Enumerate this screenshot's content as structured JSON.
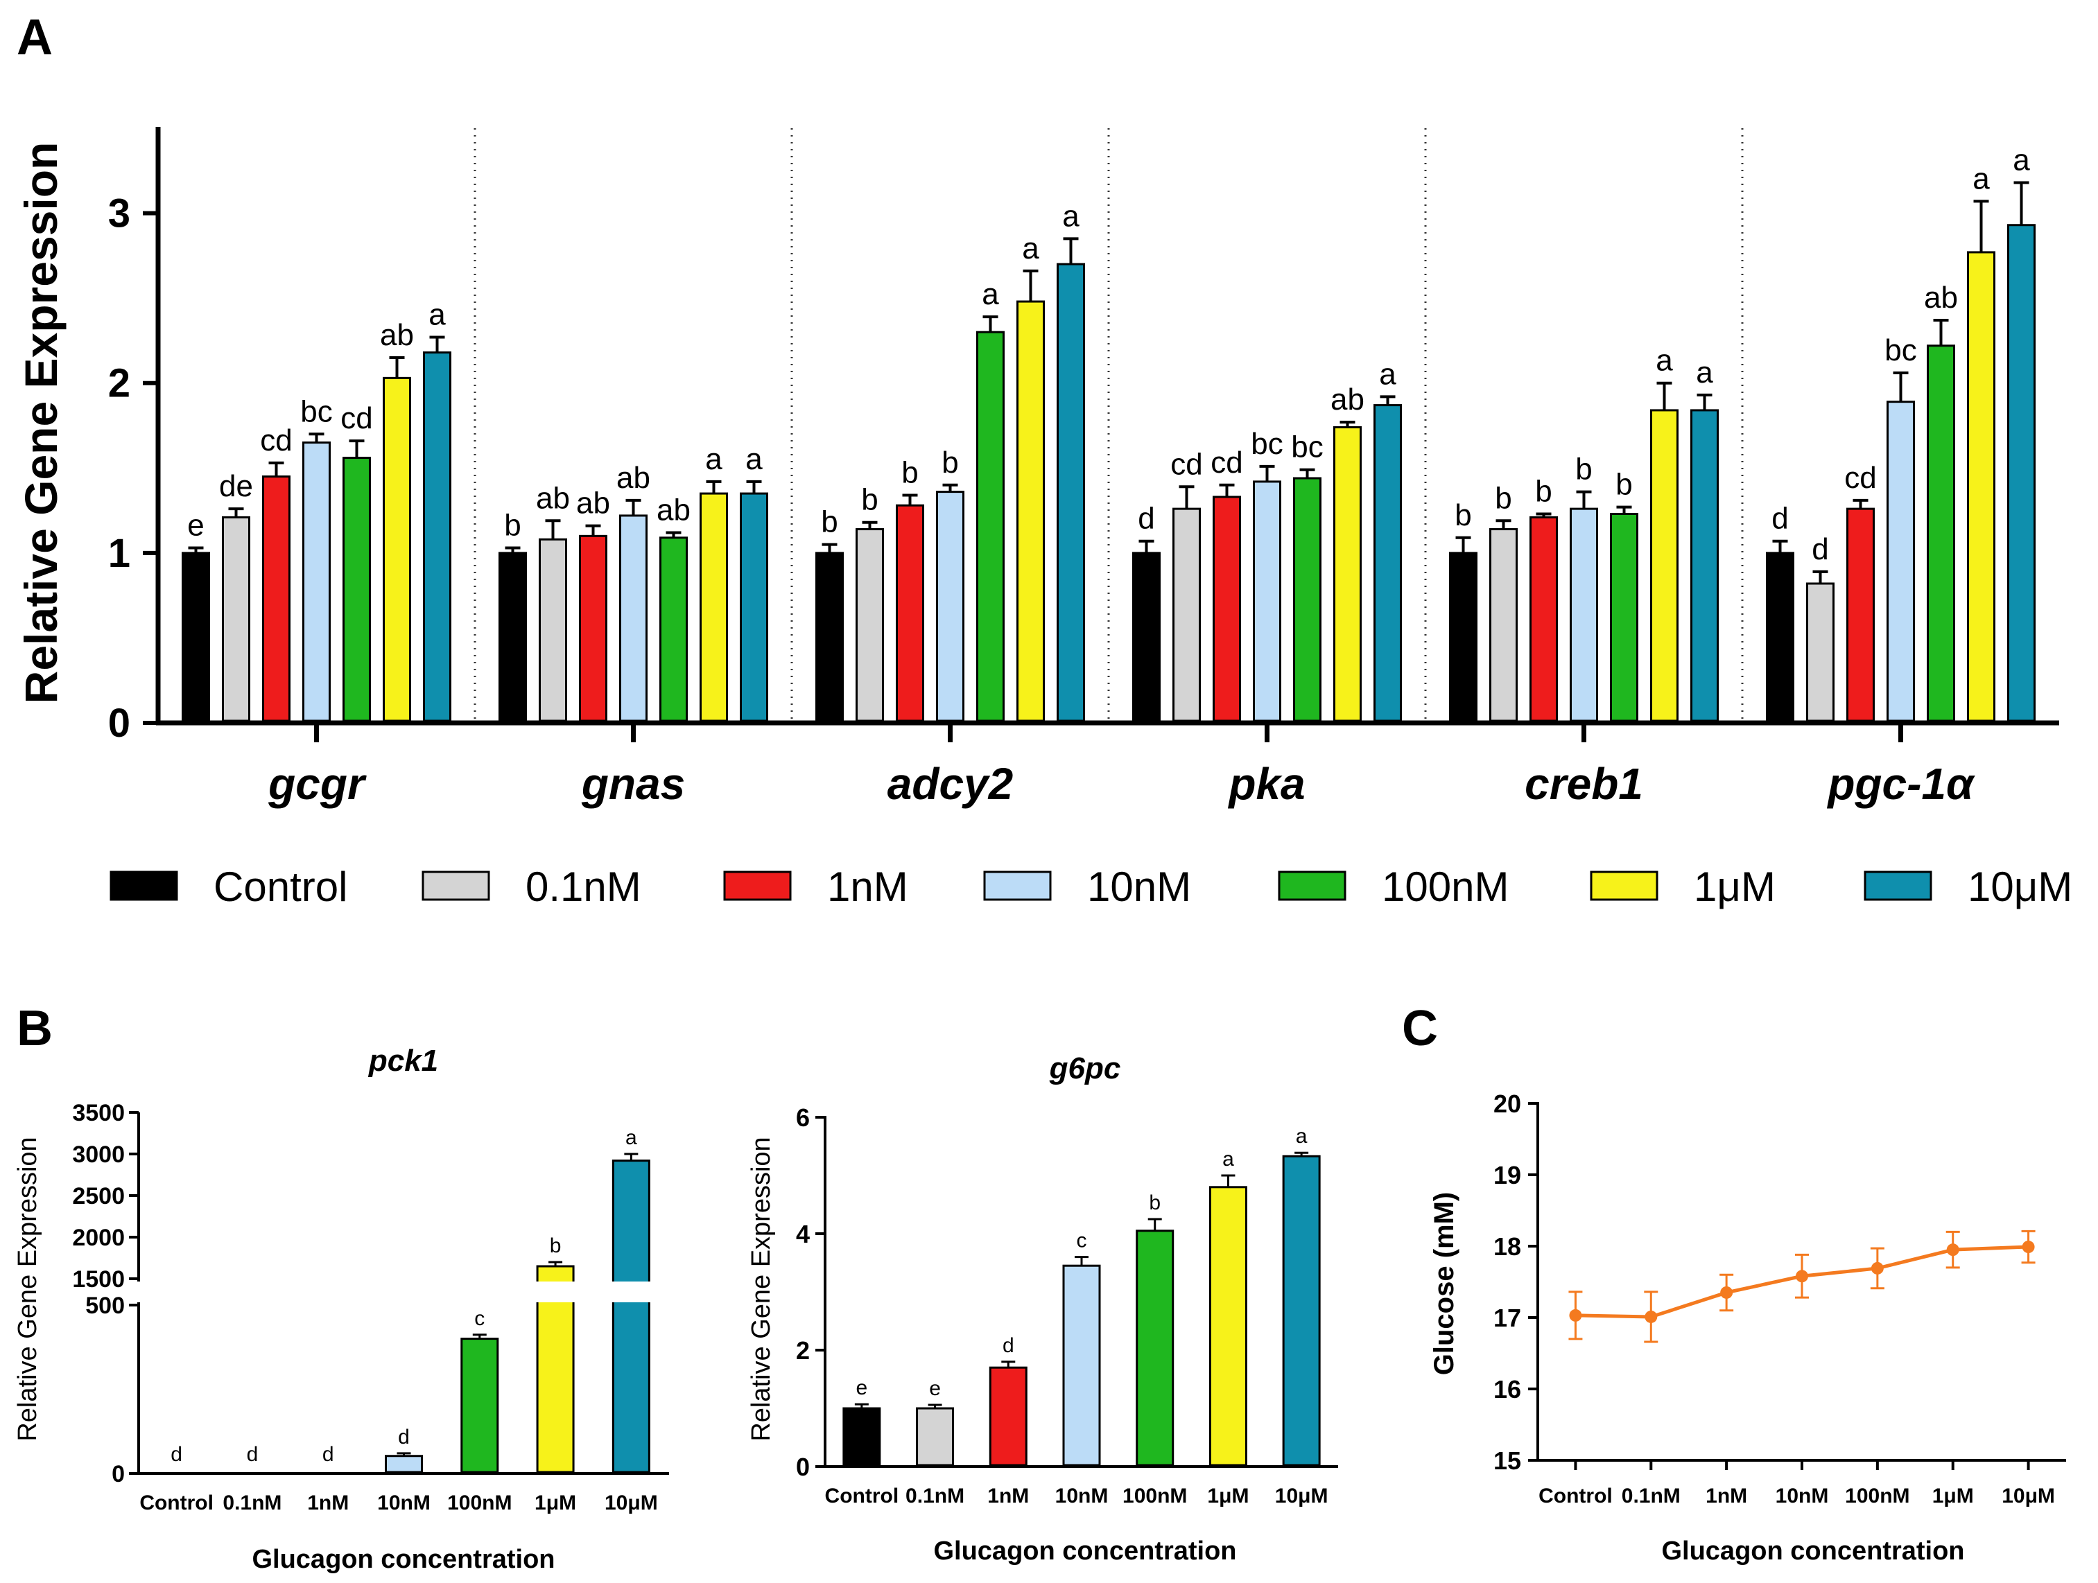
{
  "colors": {
    "Control": "#000000",
    "0.1nM": "#d4d4d4",
    "1nM": "#ee1c1c",
    "10nM": "#bcdcf7",
    "100nM": "#1fb71f",
    "1μM": "#f7f21a",
    "10μM": "#0f8fad",
    "line": "#f47a1f"
  },
  "chart_data": [
    {
      "panel": "A",
      "type": "bar",
      "ylabel": "Relative Gene Expression",
      "ylim": [
        0,
        3.5
      ],
      "yticks": [
        "0",
        "1",
        "2",
        "3"
      ],
      "categories": [
        "gcgr",
        "gnas",
        "adcy2",
        "pka",
        "creb1",
        "pgc-1α"
      ],
      "series": [
        {
          "name": "Control",
          "values": [
            1.0,
            1.0,
            1.0,
            1.0,
            1.0,
            1.0
          ],
          "errors": [
            0.03,
            0.03,
            0.05,
            0.07,
            0.09,
            0.07
          ],
          "letters": [
            "e",
            "b",
            "b",
            "d",
            "b",
            "d"
          ]
        },
        {
          "name": "0.1nM",
          "values": [
            1.21,
            1.08,
            1.14,
            1.26,
            1.14,
            0.82
          ],
          "errors": [
            0.05,
            0.11,
            0.04,
            0.13,
            0.05,
            0.07
          ],
          "letters": [
            "de",
            "ab",
            "b",
            "cd",
            "b",
            "d"
          ]
        },
        {
          "name": "1nM",
          "values": [
            1.45,
            1.1,
            1.28,
            1.33,
            1.21,
            1.26
          ],
          "errors": [
            0.08,
            0.06,
            0.06,
            0.07,
            0.02,
            0.05
          ],
          "letters": [
            "cd",
            "ab",
            "b",
            "cd",
            "b",
            "cd"
          ]
        },
        {
          "name": "10nM",
          "values": [
            1.65,
            1.22,
            1.36,
            1.42,
            1.26,
            1.89
          ],
          "errors": [
            0.05,
            0.09,
            0.04,
            0.09,
            0.1,
            0.17
          ],
          "letters": [
            "bc",
            "ab",
            "b",
            "bc",
            "b",
            "bc"
          ]
        },
        {
          "name": "100nM",
          "values": [
            1.56,
            1.09,
            2.3,
            1.44,
            1.23,
            2.22
          ],
          "errors": [
            0.1,
            0.03,
            0.09,
            0.05,
            0.04,
            0.15
          ],
          "letters": [
            "cd",
            "ab",
            "a",
            "bc",
            "b",
            "ab"
          ]
        },
        {
          "name": "1μM",
          "values": [
            2.03,
            1.35,
            2.48,
            1.74,
            1.84,
            2.77
          ],
          "errors": [
            0.12,
            0.07,
            0.18,
            0.03,
            0.16,
            0.3
          ],
          "letters": [
            "ab",
            "a",
            "a",
            "ab",
            "a",
            "a"
          ]
        },
        {
          "name": "10μM",
          "values": [
            2.18,
            1.35,
            2.7,
            1.87,
            1.84,
            2.93
          ],
          "errors": [
            0.09,
            0.07,
            0.15,
            0.05,
            0.09,
            0.25
          ],
          "letters": [
            "a",
            "a",
            "a",
            "a",
            "a",
            "a"
          ]
        }
      ]
    },
    {
      "panel": "B",
      "type": "bar",
      "title": "pck1",
      "xlabel": "Glucagon concentration",
      "ylabel": "Relative Gene Expression",
      "axis_break": [
        500,
        1500
      ],
      "ylim": [
        0,
        3500
      ],
      "yticks_lower": [
        "0",
        "500"
      ],
      "yticks_upper": [
        "1500",
        "2000",
        "2500",
        "3000",
        "3500"
      ],
      "categories": [
        "Control",
        "0.1nM",
        "1nM",
        "10nM",
        "100nM",
        "1μM",
        "10μM"
      ],
      "values": [
        1,
        1.5,
        3,
        52,
        400,
        1650,
        2920
      ],
      "errors": [
        0.1,
        0.3,
        0.5,
        8,
        12,
        50,
        80
      ],
      "letters": [
        "d",
        "d",
        "d",
        "d",
        "c",
        "b",
        "a"
      ]
    },
    {
      "panel": "B",
      "type": "bar",
      "title": "g6pc",
      "xlabel": "Glucagon concentration",
      "ylabel": "Relative Gene Expression",
      "ylim": [
        0,
        6
      ],
      "yticks": [
        "0",
        "2",
        "4",
        "6"
      ],
      "categories": [
        "Control",
        "0.1nM",
        "1nM",
        "10nM",
        "100nM",
        "1μM",
        "10μM"
      ],
      "values": [
        1.0,
        1.0,
        1.7,
        3.45,
        4.05,
        4.8,
        5.33
      ],
      "errors": [
        0.07,
        0.06,
        0.1,
        0.15,
        0.2,
        0.2,
        0.06
      ],
      "letters": [
        "e",
        "e",
        "d",
        "c",
        "b",
        "a",
        "a"
      ]
    },
    {
      "panel": "C",
      "type": "line",
      "xlabel": "Glucagon concentration",
      "ylabel": "Glucose (mM)",
      "ylim": [
        15,
        20
      ],
      "yticks": [
        "15",
        "16",
        "17",
        "18",
        "19",
        "20"
      ],
      "categories": [
        "Control",
        "0.1nM",
        "1nM",
        "10nM",
        "100nM",
        "1μM",
        "10μM"
      ],
      "values": [
        17.03,
        17.01,
        17.35,
        17.58,
        17.69,
        17.95,
        17.99
      ],
      "errors": [
        0.33,
        0.35,
        0.25,
        0.3,
        0.28,
        0.25,
        0.22
      ]
    }
  ],
  "labels": {
    "panel_a": "A",
    "panel_b": "B",
    "panel_c": "C"
  }
}
